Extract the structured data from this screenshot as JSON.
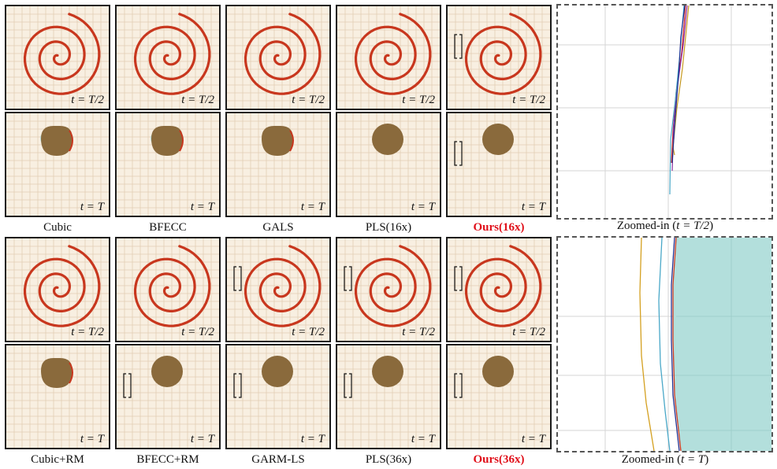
{
  "colors": {
    "bg": "#f8efe1",
    "grid": "#e2cdb4",
    "spiral": "#c8371e",
    "disk": "#8a6a3c",
    "ghost": "#a8d8d8",
    "zoom_fill": "#b3dfdc"
  },
  "top_block": {
    "methods": [
      "Cubic",
      "BFECC",
      "GALS",
      "PLS(16x)",
      "Ours(16x)"
    ],
    "half_label": "t = T/2",
    "full_label": "t = T",
    "zoom_caption_prefix": "Zoomed-in (",
    "zoom_caption_math": "t = T/2",
    "zoom_caption_suffix": ")"
  },
  "bottom_block": {
    "methods": [
      "Cubic+RM",
      "BFECC+RM",
      "GARM-LS",
      "PLS(36x)",
      "Ours(36x)"
    ],
    "half_label": "t = T/2",
    "full_label": "t = T",
    "zoom_caption_prefix": "Zoomed-in (",
    "zoom_caption_math": "t = T",
    "zoom_caption_suffix": ")"
  }
}
